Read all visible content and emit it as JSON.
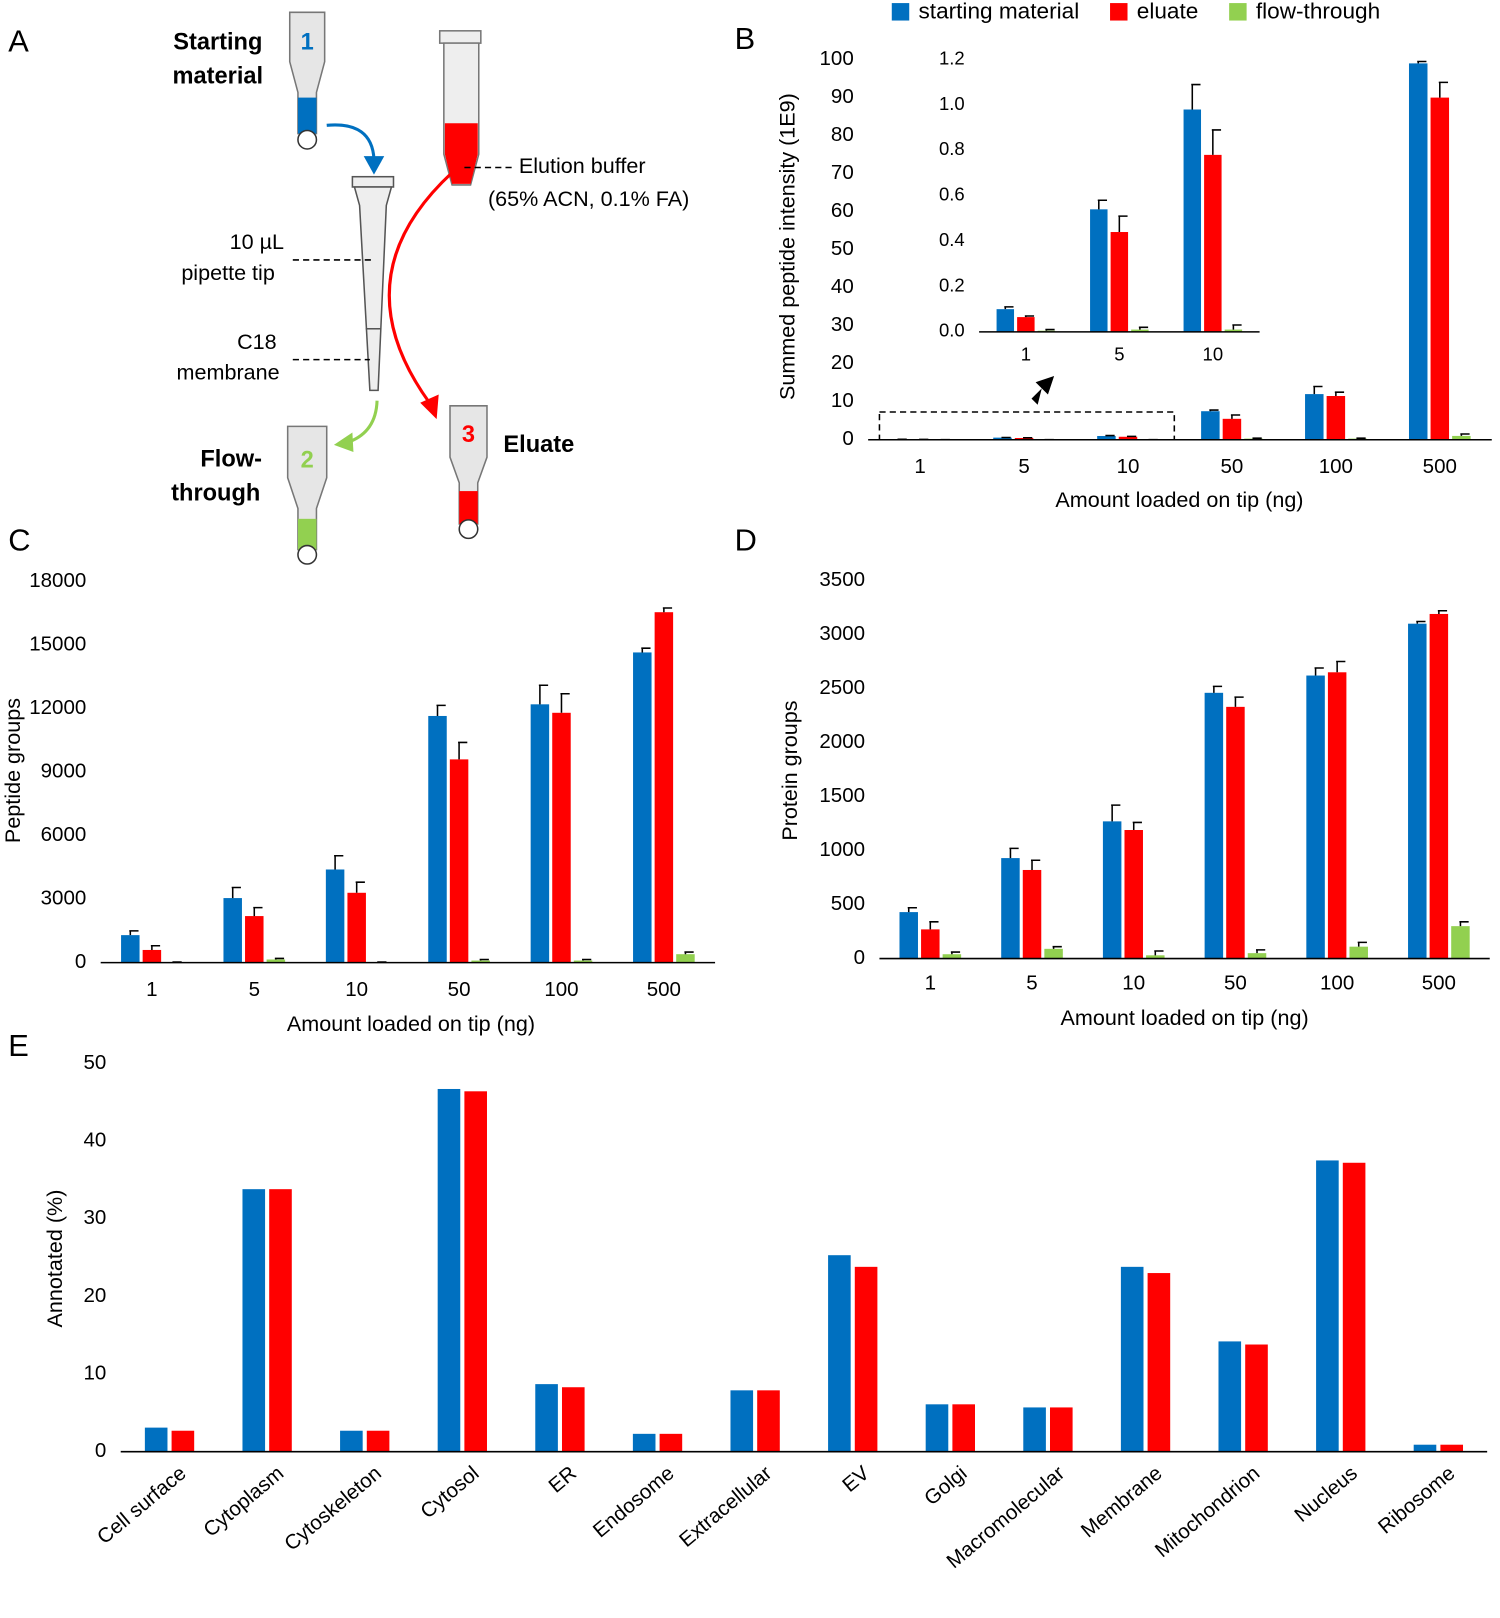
{
  "diagram": {
    "panel": "A",
    "labels": [
      "Starting",
      "material",
      "1",
      "Elution buffer",
      "(65% ACN, 0.1% FA)",
      "10 µL",
      "pipette tip",
      "C18",
      "membrane",
      "Flow-",
      "through",
      "2",
      "3",
      "Eluate"
    ]
  },
  "chart_data": [
    {
      "panel": "B",
      "type": "bar",
      "x_label": "Amount loaded on tip (ng)",
      "y_label": "Summed peptide intensity (1E9)",
      "categories": [
        "1",
        "5",
        "10",
        "50",
        "100",
        "500"
      ],
      "series": [
        {
          "name": "starting material",
          "color": "#0070c0",
          "values": [
            0.11,
            0.55,
            0.98,
            7.5,
            12,
            99
          ],
          "errors": [
            0.01,
            0.04,
            0.11,
            0.3,
            2,
            0.5
          ]
        },
        {
          "name": "eluate",
          "color": "#ff0000",
          "values": [
            0.06,
            0.45,
            0.78,
            5.5,
            11.5,
            90
          ],
          "errors": [
            0.01,
            0.07,
            0.11,
            1,
            1,
            4
          ]
        },
        {
          "name": "flow-through",
          "color": "#92d050",
          "values": [
            0.01,
            0.01,
            0.01,
            0.3,
            0.3,
            1
          ],
          "errors": [
            0.01,
            0.01,
            0.02,
            0.1,
            0.1,
            0.5
          ]
        }
      ],
      "ylim": [
        0,
        100
      ],
      "yticks": [
        0,
        10,
        20,
        30,
        40,
        50,
        60,
        70,
        80,
        90,
        100
      ],
      "legend": "top"
    },
    {
      "type": "bar",
      "categories": [
        "1",
        "5",
        "10"
      ],
      "series": [
        {
          "color": "#0070c0",
          "values": [
            0.1,
            0.54,
            0.98
          ],
          "errors": [
            0.01,
            0.04,
            0.11
          ]
        },
        {
          "color": "#ff0000",
          "values": [
            0.065,
            0.44,
            0.78
          ],
          "errors": [
            0.005,
            0.07,
            0.11
          ]
        },
        {
          "color": "#92d050",
          "values": [
            0.005,
            0.01,
            0.01
          ],
          "errors": [
            0.005,
            0.01,
            0.02
          ]
        }
      ],
      "ylim": [
        0,
        1.2
      ],
      "yticks": [
        {
          "value": 0,
          "label": "0.0"
        },
        0.2,
        0.4,
        0.6,
        0.8,
        {
          "value": 1,
          "label": "1.0"
        },
        1.2
      ]
    },
    {
      "panel": "C",
      "type": "bar",
      "x_label": "Amount loaded on tip (ng)",
      "y_label": "Peptide groups",
      "categories": [
        "1",
        "5",
        "10",
        "50",
        "100",
        "500"
      ],
      "series": [
        {
          "color": "#0070c0",
          "values": [
            1300,
            3050,
            4400,
            11650,
            12200,
            14650
          ],
          "errors": [
            200,
            500,
            650,
            500,
            900,
            200
          ]
        },
        {
          "color": "#ff0000",
          "values": [
            600,
            2200,
            3300,
            9600,
            11800,
            16550
          ],
          "errors": [
            200,
            400,
            500,
            800,
            900,
            200
          ]
        },
        {
          "color": "#92d050",
          "values": [
            20,
            150,
            20,
            100,
            100,
            400
          ],
          "errors": [
            10,
            50,
            10,
            50,
            50,
            100
          ]
        }
      ],
      "ylim": [
        0,
        18000
      ],
      "yticks": [
        0,
        3000,
        6000,
        9000,
        12000,
        15000,
        18000
      ]
    },
    {
      "panel": "D",
      "type": "bar",
      "x_label": "Amount loaded on tip (ng)",
      "y_label": "Protein groups",
      "categories": [
        "1",
        "5",
        "10",
        "50",
        "100",
        "500"
      ],
      "series": [
        {
          "color": "#0070c0",
          "values": [
            430,
            930,
            1270,
            2460,
            2620,
            3100
          ],
          "errors": [
            40,
            90,
            150,
            60,
            70,
            20
          ]
        },
        {
          "color": "#ff0000",
          "values": [
            270,
            820,
            1190,
            2330,
            2650,
            3190
          ],
          "errors": [
            70,
            90,
            70,
            90,
            100,
            30
          ]
        },
        {
          "color": "#92d050",
          "values": [
            40,
            90,
            30,
            50,
            110,
            300
          ],
          "errors": [
            20,
            20,
            40,
            30,
            40,
            40
          ]
        }
      ],
      "ylim": [
        0,
        3500
      ],
      "yticks": [
        0,
        500,
        1000,
        1500,
        2000,
        2500,
        3000,
        3500
      ]
    },
    {
      "panel": "E",
      "type": "bar",
      "y_label": "Annotated (%)",
      "categories": [
        "Cell surface",
        "Cytoplasm",
        "Cytoskeleton",
        "Cytosol",
        "ER",
        "Endosome",
        "Extracellular",
        "EV",
        "Golgi",
        "Macromolecular",
        "Membrane",
        "Mitochondrion",
        "Nucleus",
        "Ribosome"
      ],
      "series": [
        {
          "color": "#0070c0",
          "values": [
            3.1,
            33.8,
            2.7,
            46.7,
            8.7,
            2.3,
            7.9,
            25.3,
            6.1,
            5.7,
            23.8,
            14.2,
            37.5,
            0.9
          ]
        },
        {
          "color": "#ff0000",
          "values": [
            2.7,
            33.8,
            2.7,
            46.4,
            8.3,
            2.3,
            7.9,
            23.8,
            6.1,
            5.7,
            23.0,
            13.8,
            37.2,
            0.9
          ]
        }
      ],
      "ylim": [
        0,
        50
      ],
      "yticks": [
        0,
        10,
        20,
        30,
        40,
        50
      ]
    }
  ]
}
